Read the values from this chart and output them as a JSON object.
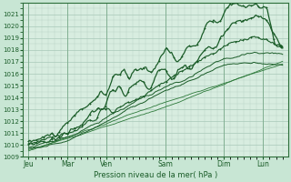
{
  "title": "",
  "xlabel": "Pression niveau de la mer( hPa )",
  "background_color": "#c8e6d4",
  "plot_bg_color": "#d8ede0",
  "grid_color": "#a8c8b8",
  "line_color_dark": "#1a5c28",
  "line_color_light": "#2d7a3a",
  "ylim": [
    1009,
    1022
  ],
  "yticks": [
    1009,
    1010,
    1011,
    1012,
    1013,
    1014,
    1015,
    1016,
    1017,
    1018,
    1019,
    1020,
    1021
  ],
  "xtick_labels": [
    "Jeu",
    "Mar",
    "Ven",
    "Sam",
    "Dim",
    "Lun"
  ],
  "xtick_positions": [
    0.0,
    1.0,
    2.0,
    3.5,
    5.0,
    6.0
  ]
}
